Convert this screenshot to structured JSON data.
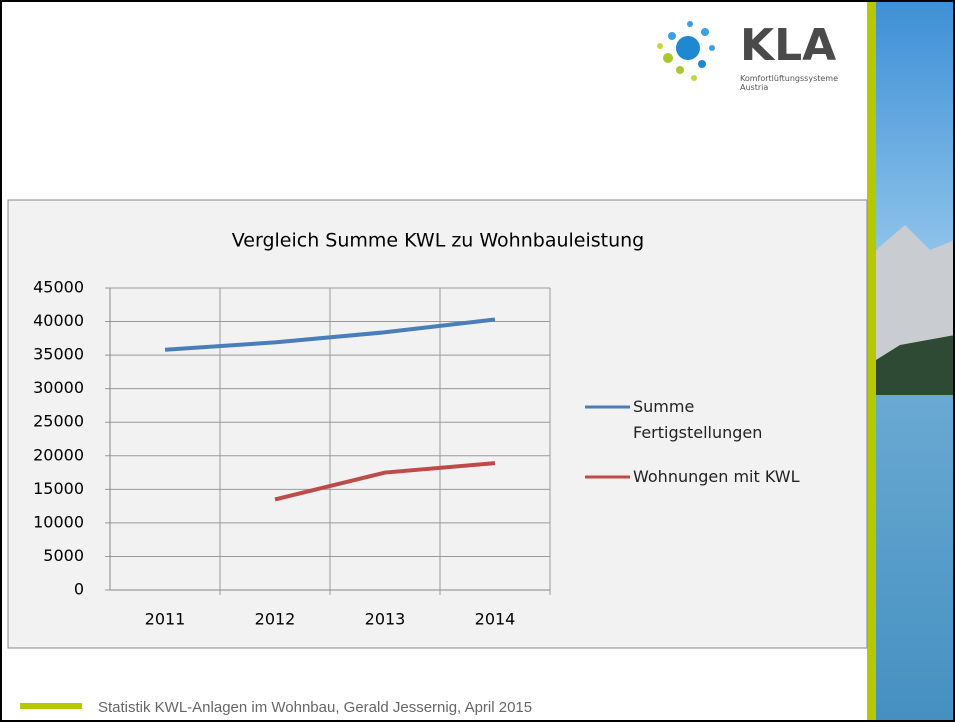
{
  "chart_data": {
    "type": "line",
    "title": "Vergleich Summe KWL zu Wohnbauleistung",
    "categories": [
      "2011",
      "2012",
      "2013",
      "2014"
    ],
    "series": [
      {
        "name": "Summe Fertigstellungen",
        "color": "#4a7ebb",
        "values": [
          35800,
          36900,
          38400,
          40300
        ]
      },
      {
        "name": "Wohnungen mit KWL",
        "color": "#be4b48",
        "values": [
          null,
          13500,
          17500,
          18900
        ]
      }
    ],
    "ylim": [
      0,
      45000
    ],
    "yticks": [
      0,
      5000,
      10000,
      15000,
      20000,
      25000,
      30000,
      35000,
      40000,
      45000
    ],
    "grid": true,
    "legend": "right"
  },
  "logo": {
    "name": "KLA",
    "tagline": "Komfortlüftungssysteme Austria"
  },
  "footer": "Statistik KWL-Anlagen im Wohnbau, Gerald Jessernig, April 2015"
}
